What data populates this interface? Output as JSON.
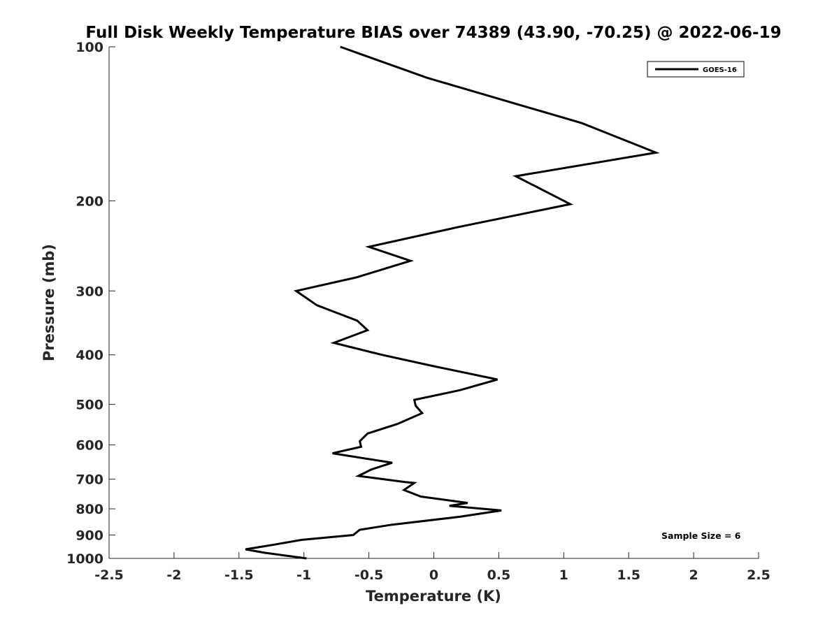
{
  "chart_data": {
    "type": "line",
    "title": "Full Disk Weekly Temperature BIAS over 74389 (43.90, -70.25) @ 2022-06-19",
    "xlabel": "Temperature (K)",
    "ylabel": "Pressure (mb)",
    "xlim": [
      -2.5,
      2.5
    ],
    "ylim": [
      100,
      1000
    ],
    "yscale": "log",
    "y_reversed": true,
    "grid": false,
    "legend_position": "top-right",
    "x_ticks": [
      -2.5,
      -2,
      -1.5,
      -1,
      -0.5,
      0,
      0.5,
      1,
      1.5,
      2,
      2.5
    ],
    "x_tick_labels": [
      "-2.5",
      "-2",
      "-1.5",
      "-1",
      "-0.5",
      "0",
      "0.5",
      "1",
      "1.5",
      "2",
      "2.5"
    ],
    "y_ticks": [
      100,
      200,
      300,
      400,
      500,
      600,
      700,
      800,
      900,
      1000
    ],
    "y_tick_labels": [
      "100",
      "200",
      "300",
      "400",
      "500",
      "600",
      "700",
      "800",
      "900",
      "1000"
    ],
    "series": [
      {
        "name": "GOES-16",
        "color": "#000000",
        "points": [
          [
            -0.72,
            100
          ],
          [
            -0.05,
            115
          ],
          [
            1.14,
            141
          ],
          [
            1.71,
            161
          ],
          [
            0.63,
            179
          ],
          [
            1.05,
            203
          ],
          [
            0.19,
            225
          ],
          [
            -0.5,
            246
          ],
          [
            -0.18,
            262
          ],
          [
            -0.59,
            282
          ],
          [
            -1.06,
            300
          ],
          [
            -0.9,
            320
          ],
          [
            -0.59,
            343
          ],
          [
            -0.51,
            358
          ],
          [
            -0.77,
            379
          ],
          [
            -0.4,
            400
          ],
          [
            0.0,
            421
          ],
          [
            0.49,
            447
          ],
          [
            0.2,
            469
          ],
          [
            -0.15,
            490
          ],
          [
            -0.14,
            503
          ],
          [
            -0.09,
            520
          ],
          [
            -0.28,
            546
          ],
          [
            -0.51,
            570
          ],
          [
            -0.57,
            590
          ],
          [
            -0.56,
            605
          ],
          [
            -0.78,
            623
          ],
          [
            -0.32,
            650
          ],
          [
            -0.48,
            670
          ],
          [
            -0.58,
            690
          ],
          [
            -0.22,
            709
          ],
          [
            -0.15,
            712
          ],
          [
            -0.23,
            735
          ],
          [
            -0.1,
            757
          ],
          [
            0.26,
            779
          ],
          [
            0.12,
            789
          ],
          [
            0.52,
            806
          ],
          [
            0.2,
            829
          ],
          [
            -0.32,
            859
          ],
          [
            -0.57,
            879
          ],
          [
            -0.62,
            900
          ],
          [
            -1.02,
            920
          ],
          [
            -1.23,
            940
          ],
          [
            -1.45,
            960
          ],
          [
            -1.3,
            975
          ],
          [
            -0.98,
            1000
          ]
        ]
      }
    ],
    "legend": [
      "GOES-16"
    ],
    "annotation": "Sample Size = 6"
  }
}
